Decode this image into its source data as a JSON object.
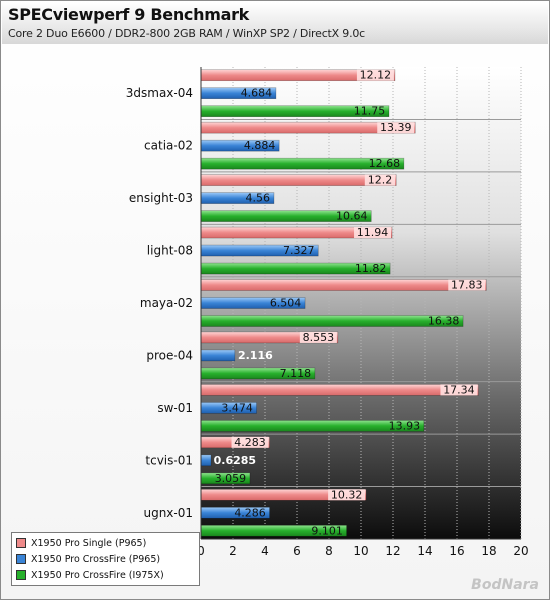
{
  "header": {
    "title": "SPECviewperf 9 Benchmark",
    "subtitle": "Core 2 Duo E6600 / DDR2-800 2GB RAM / WinXP SP2 / DirectX 9.0c"
  },
  "watermark": "BodNara",
  "chart_data": {
    "type": "bar",
    "orientation": "horizontal",
    "categories": [
      "3dsmax-04",
      "catia-02",
      "ensight-03",
      "light-08",
      "maya-02",
      "proe-04",
      "sw-01",
      "tcvis-01",
      "ugnx-01"
    ],
    "series": [
      {
        "name": "X1950 Pro Single (P965)",
        "color": "#ee8a8a",
        "values": [
          12.12,
          13.39,
          12.2,
          11.94,
          17.83,
          8.553,
          17.34,
          4.283,
          10.32
        ]
      },
      {
        "name": "X1950 Pro CrossFire (P965)",
        "color": "#3a84d6",
        "values": [
          4.684,
          4.884,
          4.56,
          7.327,
          6.504,
          2.116,
          3.474,
          0.6285,
          4.286
        ]
      },
      {
        "name": "X1950 Pro CrossFire (I975X)",
        "color": "#27b02c",
        "values": [
          11.75,
          12.68,
          10.64,
          11.82,
          16.38,
          7.118,
          13.93,
          3.059,
          9.101
        ]
      }
    ],
    "value_labels": [
      [
        "12.12",
        "13.39",
        "12.2",
        "11.94",
        "17.83",
        "8.553",
        "17.34",
        "4.283",
        "10.32"
      ],
      [
        "4.684",
        "4.884",
        "4.56",
        "7.327",
        "6.504",
        "2.116",
        "3.474",
        "0.6285",
        "4.286"
      ],
      [
        "11.75",
        "12.68",
        "10.64",
        "11.82",
        "16.38",
        "7.118",
        "13.93",
        "3.059",
        "9.101"
      ]
    ],
    "xlim": [
      0,
      20
    ],
    "xticks": [
      0,
      2,
      4,
      6,
      8,
      10,
      12,
      14,
      16,
      18,
      20
    ],
    "tick_labels": [
      "0",
      "2",
      "4",
      "6",
      "8",
      "10",
      "12",
      "14",
      "16",
      "18",
      "20"
    ],
    "grid": true,
    "legend_position": "bottom-left"
  }
}
